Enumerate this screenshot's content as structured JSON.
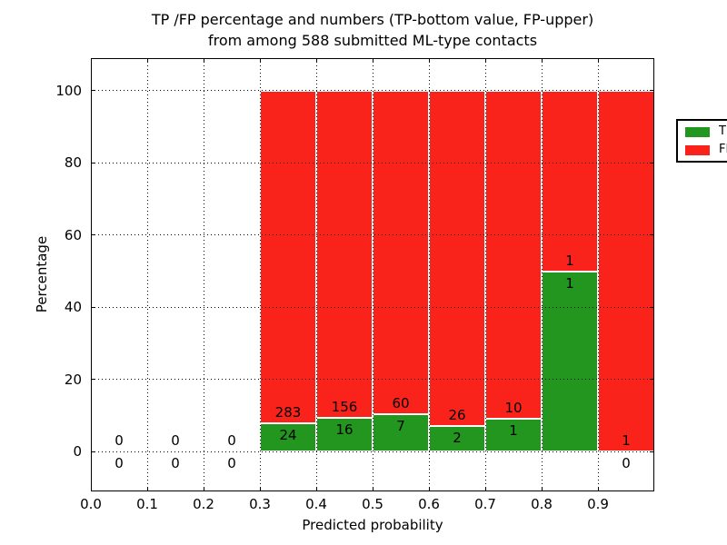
{
  "chart_data": {
    "type": "bar",
    "stacked": true,
    "title": "TP /FP percentage and numbers (TP-bottom value, FP-upper) from among 588 submitted ML-type contacts",
    "title_lines": [
      "TP /FP percentage and numbers (TP-bottom value, FP-upper)",
      "from among 588 submitted ML-type contacts"
    ],
    "xlabel": "Predicted probability",
    "ylabel": "Percentage",
    "xlim": [
      0.0,
      1.0
    ],
    "ylim_display": [
      -11,
      109
    ],
    "grid": "dotted",
    "total_contacts": 588,
    "xticks": [
      {
        "label": "0.0",
        "value": 0.0
      },
      {
        "label": "0.1",
        "value": 0.1
      },
      {
        "label": "0.2",
        "value": 0.2
      },
      {
        "label": "0.3",
        "value": 0.3
      },
      {
        "label": "0.4",
        "value": 0.4
      },
      {
        "label": "0.5",
        "value": 0.5
      },
      {
        "label": "0.6",
        "value": 0.6
      },
      {
        "label": "0.7",
        "value": 0.7
      },
      {
        "label": "0.8",
        "value": 0.8
      },
      {
        "label": "0.9",
        "value": 0.9
      }
    ],
    "yticks": [
      {
        "label": "0",
        "value": 0
      },
      {
        "label": "20",
        "value": 20
      },
      {
        "label": "40",
        "value": 40
      },
      {
        "label": "60",
        "value": 60
      },
      {
        "label": "80",
        "value": 80
      },
      {
        "label": "100",
        "value": 100
      }
    ],
    "legend": {
      "position": "upper right",
      "entries": [
        {
          "label": "TP",
          "color": "#22961e"
        },
        {
          "label": "FP",
          "color": "#f9231c"
        }
      ]
    },
    "bins": [
      {
        "x0": 0.0,
        "x1": 0.1,
        "tp": 0,
        "fp": 0
      },
      {
        "x0": 0.1,
        "x1": 0.2,
        "tp": 0,
        "fp": 0
      },
      {
        "x0": 0.2,
        "x1": 0.3,
        "tp": 0,
        "fp": 0
      },
      {
        "x0": 0.3,
        "x1": 0.4,
        "tp": 24,
        "fp": 283
      },
      {
        "x0": 0.4,
        "x1": 0.5,
        "tp": 16,
        "fp": 156
      },
      {
        "x0": 0.5,
        "x1": 0.6,
        "tp": 7,
        "fp": 60
      },
      {
        "x0": 0.6,
        "x1": 0.7,
        "tp": 2,
        "fp": 26
      },
      {
        "x0": 0.7,
        "x1": 0.8,
        "tp": 1,
        "fp": 10
      },
      {
        "x0": 0.8,
        "x1": 0.9,
        "tp": 1,
        "fp": 1
      },
      {
        "x0": 0.9,
        "x1": 1.0,
        "tp": 0,
        "fp": 1
      }
    ]
  }
}
